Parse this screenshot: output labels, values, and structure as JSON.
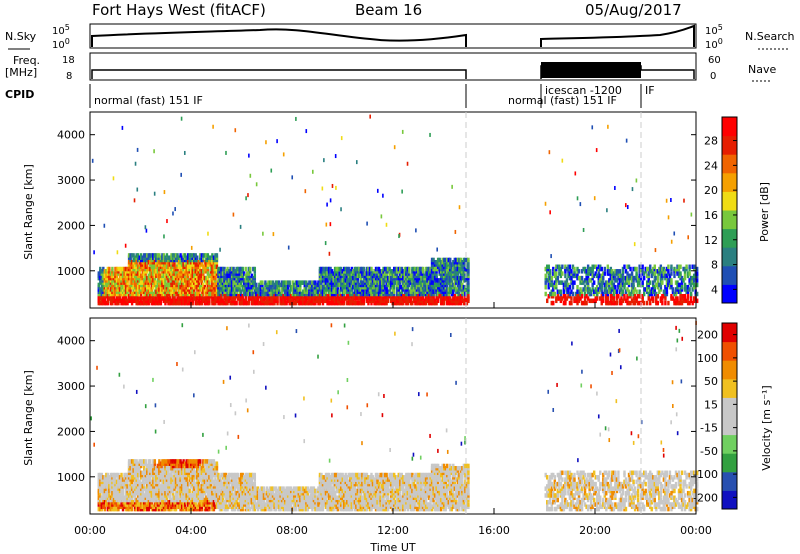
{
  "header": {
    "station": "Fort Hays West (fitACF)",
    "beam": "Beam 16",
    "date": "05/Aug/2017"
  },
  "labels": {
    "nsky": "N.Sky",
    "nsearch": "N.Search",
    "freq_line1": "Freq.",
    "freq_line2": "[MHz]",
    "nave": "Nave",
    "cpid": "CPID",
    "nsky_top": "10^5",
    "nsky_bottom": "10^0",
    "nsearch_top": "10^5",
    "nsearch_bottom": "10^0",
    "freq_top": "18",
    "freq_bottom": "8",
    "nave_top": "60",
    "nave_bottom": "0",
    "mode_normal_left": "normal (fast) 151 IF",
    "mode_normal_right": "normal (fast) 151 IF",
    "mode_icescan": "icescan -1200",
    "mode_if": "IF"
  },
  "chart_data": [
    {
      "type": "heatmap",
      "name": "power",
      "ylabel": "Slant Range [km]",
      "xlabel": "",
      "colorbar_label": "Power [dB]",
      "colorbar_ticks": [
        "28",
        "24",
        "20",
        "16",
        "12",
        "8",
        "4"
      ],
      "ylim": [
        180,
        4500
      ],
      "yticks": [
        "4000",
        "3000",
        "2000",
        "1000"
      ],
      "xlim": [
        0,
        24
      ]
    },
    {
      "type": "heatmap",
      "name": "velocity",
      "ylabel": "Slant Range [km]",
      "xlabel": "Time UT",
      "colorbar_label": "Velocity [m s⁻¹]",
      "colorbar_ticks": [
        "200",
        "100",
        "50",
        "15",
        "-15",
        "-50",
        "-100",
        "-200"
      ],
      "ylim": [
        180,
        4500
      ],
      "yticks": [
        "4000",
        "3000",
        "2000",
        "1000"
      ],
      "xticks": [
        "00:00",
        "04:00",
        "08:00",
        "12:00",
        "16:00",
        "20:00",
        "00:00"
      ],
      "xlim": [
        0,
        24
      ]
    }
  ],
  "colors": {
    "power": [
      "#0000ff",
      "#1f4fb4",
      "#2a7f80",
      "#2e9e55",
      "#78c83c",
      "#f0dc14",
      "#f5a000",
      "#f06400",
      "#e61e00",
      "#ff0000"
    ],
    "velocity": [
      "#1010c0",
      "#2850b0",
      "#32a040",
      "#70d060",
      "#c8c8c8",
      "#c8c8c8",
      "#f0c020",
      "#f08c00",
      "#f05000",
      "#e00000"
    ]
  }
}
